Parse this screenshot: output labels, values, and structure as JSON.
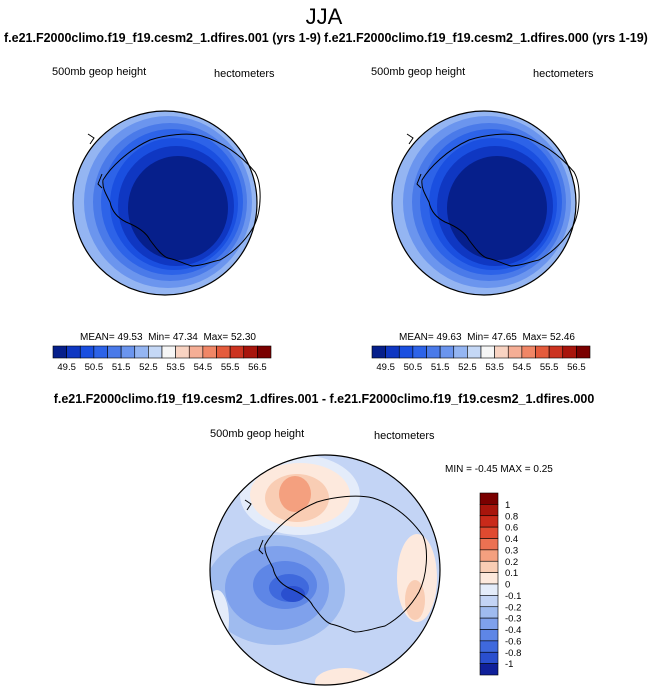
{
  "title": "JJA",
  "units_label": "hectometers",
  "variable_label": "500mb geop height",
  "panels": [
    {
      "id": "test",
      "run_label": "f.e21.F2000climo.f19_f19.cesm2_1.dfires.001 (yrs 1-9)",
      "stats": {
        "mean_label": "MEAN=",
        "mean": "49.53",
        "min_label": "Min=",
        "min": "47.34",
        "max_label": "Max=",
        "max": "52.30"
      }
    },
    {
      "id": "control",
      "run_label": "f.e21.F2000climo.f19_f19.cesm2_1.dfires.000 (yrs 1-19)",
      "stats": {
        "mean_label": "MEAN=",
        "mean": "49.63",
        "min_label": "Min=",
        "min": "47.65",
        "max_label": "Max=",
        "max": "52.46"
      }
    }
  ],
  "colorbar_top": {
    "colors": [
      "#061f8b",
      "#0f37c2",
      "#1a4fe0",
      "#2d63e8",
      "#4a7ae9",
      "#6b95ee",
      "#94b5f2",
      "#c5d8f6",
      "#f6f6f6",
      "#f8d3c2",
      "#f5ae95",
      "#f08666",
      "#e45b3c",
      "#cc3320",
      "#a8150c",
      "#7a0000"
    ],
    "ticks": [
      "49.5",
      "50.5",
      "51.5",
      "52.5",
      "53.5",
      "54.5",
      "55.5",
      "56.5"
    ]
  },
  "difference": {
    "title": "f.e21.F2000climo.f19_f19.cesm2_1.dfires.001 - f.e21.F2000climo.f19_f19.cesm2_1.dfires.000",
    "stats": {
      "min_label": "MIN =",
      "min": "-0.45",
      "max_label": "MAX =",
      "max": "0.25"
    },
    "colorbar": {
      "colors": [
        "#7a0000",
        "#a8150c",
        "#c92a1a",
        "#e04a30",
        "#ec7152",
        "#f4a07f",
        "#f9cdb4",
        "#fde9dd",
        "#e4ecfa",
        "#c3d4f5",
        "#9fbbef",
        "#7fa1ec",
        "#5e86e6",
        "#3f69dd",
        "#2a4fcf",
        "#10209a"
      ],
      "ticks": [
        "1",
        "0.8",
        "0.6",
        "0.4",
        "0.3",
        "0.2",
        "0.1",
        "0",
        "-0.1",
        "-0.2",
        "-0.3",
        "-0.4",
        "-0.6",
        "-0.8",
        "-1"
      ]
    }
  },
  "chart_data": [
    {
      "type": "heatmap",
      "map": "south polar stereographic",
      "title": "f.e21.F2000climo.f19_f19.cesm2_1.dfires.001 (yrs 1-9)",
      "field": "500mb geop height",
      "units": "hectometers",
      "season": "JJA",
      "mean": 49.53,
      "min": 47.34,
      "max": 52.3,
      "contour_levels": [
        49.5,
        50.0,
        50.5,
        51.0,
        51.5,
        52.0,
        52.5,
        53.0,
        53.5,
        54.0,
        54.5,
        55.0,
        55.5,
        56.0,
        56.5
      ]
    },
    {
      "type": "heatmap",
      "map": "south polar stereographic",
      "title": "f.e21.F2000climo.f19_f19.cesm2_1.dfires.000 (yrs 1-19)",
      "field": "500mb geop height",
      "units": "hectometers",
      "season": "JJA",
      "mean": 49.63,
      "min": 47.65,
      "max": 52.46,
      "contour_levels": [
        49.5,
        50.0,
        50.5,
        51.0,
        51.5,
        52.0,
        52.5,
        53.0,
        53.5,
        54.0,
        54.5,
        55.0,
        55.5,
        56.0,
        56.5
      ]
    },
    {
      "type": "heatmap",
      "map": "south polar stereographic",
      "title": "f.e21.F2000climo.f19_f19.cesm2_1.dfires.001 - f.e21.F2000climo.f19_f19.cesm2_1.dfires.000",
      "field": "500mb geop height difference",
      "units": "hectometers",
      "season": "JJA",
      "min": -0.45,
      "max": 0.25,
      "contour_levels": [
        -1,
        -0.8,
        -0.6,
        -0.4,
        -0.3,
        -0.2,
        -0.1,
        0,
        0.1,
        0.2,
        0.3,
        0.4,
        0.6,
        0.8,
        1
      ]
    }
  ]
}
